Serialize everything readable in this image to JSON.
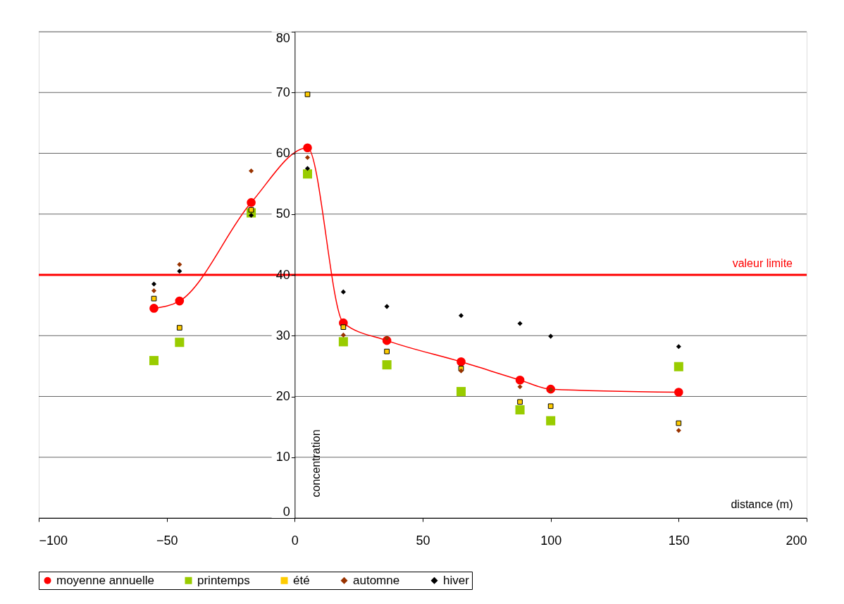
{
  "chart_data": {
    "type": "scatter",
    "xlabel": "distance (m)",
    "ylabel": "concentration",
    "xlim": [
      -100,
      200
    ],
    "xticks": [
      -100,
      -50,
      0,
      50,
      100,
      150,
      200
    ],
    "ylim": [
      0,
      80
    ],
    "yticks": [
      0,
      10,
      20,
      30,
      40,
      50,
      60,
      70,
      80
    ],
    "grid": "y",
    "legend": "bottom",
    "x": [
      -55,
      -45,
      -17,
      5,
      19,
      36,
      65,
      88,
      100,
      150
    ],
    "series": [
      {
        "name": "moyenne annuelle",
        "type": "line",
        "marker": "circle",
        "color": "#ff0000",
        "values": [
          34.5,
          35.7,
          51.9,
          60.9,
          32.1,
          29.2,
          25.7,
          22.7,
          21.2,
          20.7
        ]
      },
      {
        "name": "printemps",
        "type": "scatter",
        "marker": "square",
        "color": "#99cc00",
        "values": [
          25.9,
          28.9,
          50.2,
          56.6,
          29.0,
          25.2,
          20.8,
          17.8,
          16.0,
          24.9
        ]
      },
      {
        "name": "été",
        "type": "scatter",
        "marker": "square",
        "color": "#ffcc00",
        "values": [
          36.1,
          31.3,
          50.7,
          69.7,
          31.4,
          27.4,
          24.6,
          19.1,
          18.4,
          15.6
        ]
      },
      {
        "name": "automne",
        "type": "scatter",
        "marker": "diamond",
        "color": "#993300",
        "values": [
          37.4,
          41.7,
          57.1,
          59.3,
          30.1,
          29.6,
          24.2,
          21.6,
          21.1,
          14.4
        ]
      },
      {
        "name": "hiver",
        "type": "scatter",
        "marker": "diamond",
        "color": "#000000",
        "values": [
          38.5,
          40.6,
          49.8,
          57.5,
          37.2,
          34.8,
          33.3,
          32.0,
          29.9,
          28.2
        ]
      }
    ],
    "ref_lines": [
      {
        "axis": "y",
        "value": 40,
        "label": "valeur limite",
        "color": "#ff0000"
      }
    ]
  }
}
